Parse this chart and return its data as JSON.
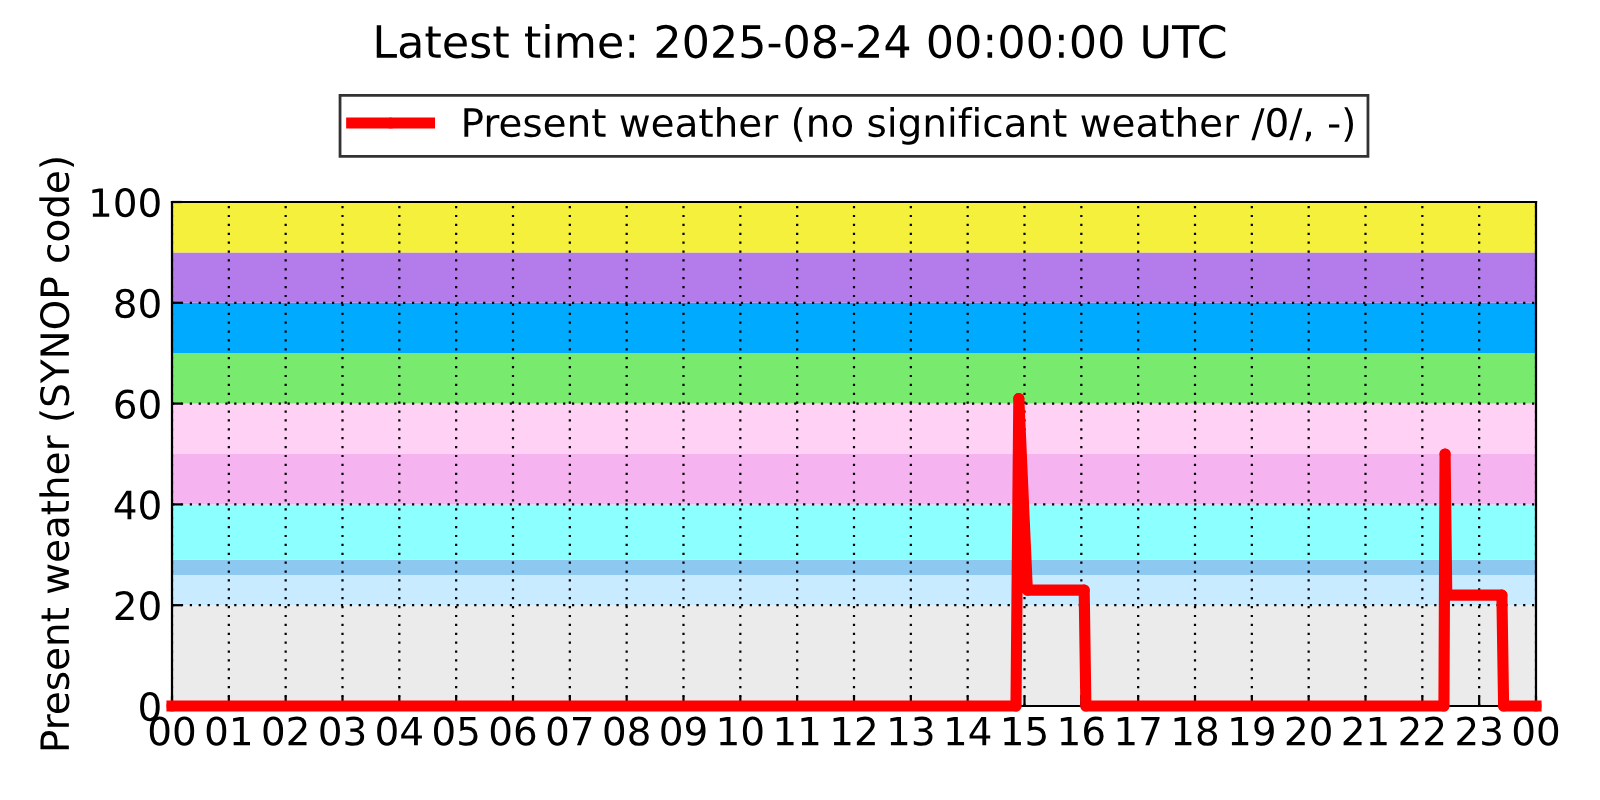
{
  "chart_data": {
    "type": "line",
    "title": "Latest time: 2025-08-24 00:00:00 UTC",
    "ylabel": "Present weather (SYNOP code)",
    "series": [
      {
        "name": "Present weather (no significant weather /0/, -)",
        "color": "#ff0000",
        "x": [
          0,
          14.85,
          14.9,
          15.05,
          16.05,
          16.08,
          22.38,
          22.4,
          22.43,
          23.4,
          23.43,
          24
        ],
        "values": [
          0,
          0,
          61,
          23,
          23,
          0,
          0,
          50,
          22,
          22,
          0,
          0
        ]
      }
    ],
    "xlim": [
      0,
      24
    ],
    "xticks": [
      {
        "value": 0,
        "label": "00"
      },
      {
        "value": 1,
        "label": "01"
      },
      {
        "value": 2,
        "label": "02"
      },
      {
        "value": 3,
        "label": "03"
      },
      {
        "value": 4,
        "label": "04"
      },
      {
        "value": 5,
        "label": "05"
      },
      {
        "value": 6,
        "label": "06"
      },
      {
        "value": 7,
        "label": "07"
      },
      {
        "value": 8,
        "label": "08"
      },
      {
        "value": 9,
        "label": "09"
      },
      {
        "value": 10,
        "label": "10"
      },
      {
        "value": 11,
        "label": "11"
      },
      {
        "value": 12,
        "label": "12"
      },
      {
        "value": 13,
        "label": "13"
      },
      {
        "value": 14,
        "label": "14"
      },
      {
        "value": 15,
        "label": "15"
      },
      {
        "value": 16,
        "label": "16"
      },
      {
        "value": 17,
        "label": "17"
      },
      {
        "value": 18,
        "label": "18"
      },
      {
        "value": 19,
        "label": "19"
      },
      {
        "value": 20,
        "label": "20"
      },
      {
        "value": 21,
        "label": "21"
      },
      {
        "value": 22,
        "label": "22"
      },
      {
        "value": 23,
        "label": "23"
      },
      {
        "value": 24,
        "label": "00"
      }
    ],
    "ylim": [
      0,
      100
    ],
    "yticks": [
      0,
      20,
      40,
      60,
      80,
      100
    ],
    "bands": [
      {
        "axis": "y",
        "from": 0,
        "to": 20,
        "color": "#ebebeb"
      },
      {
        "axis": "y",
        "from": 20,
        "to": 26,
        "color": "#c8ebff"
      },
      {
        "axis": "y",
        "from": 26,
        "to": 29,
        "color": "#8cc8f0"
      },
      {
        "axis": "y",
        "from": 29,
        "to": 40,
        "color": "#8cffff"
      },
      {
        "axis": "y",
        "from": 40,
        "to": 50,
        "color": "#f5b4f0"
      },
      {
        "axis": "y",
        "from": 50,
        "to": 60,
        "color": "#ffd2f5"
      },
      {
        "axis": "y",
        "from": 60,
        "to": 70,
        "color": "#78eb6e"
      },
      {
        "axis": "y",
        "from": 70,
        "to": 80,
        "color": "#00aaff"
      },
      {
        "axis": "y",
        "from": 80,
        "to": 90,
        "color": "#b47ceb"
      },
      {
        "axis": "y",
        "from": 90,
        "to": 100,
        "color": "#f5f03c"
      }
    ],
    "grid": true,
    "legend": "top",
    "marker": "circle",
    "line_style": "solid"
  }
}
